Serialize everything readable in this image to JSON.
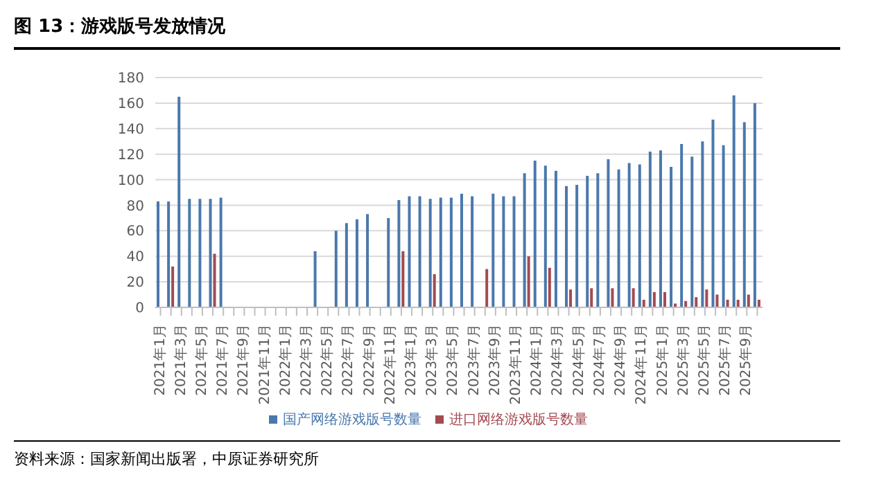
{
  "chart_data": {
    "type": "bar",
    "title": "图 13：游戏版号发放情况",
    "categories": [
      "2021年1月",
      null,
      "2021年3月",
      null,
      "2021年5月",
      null,
      "2021年7月",
      null,
      "2021年9月",
      null,
      "2021年11月",
      null,
      "2022年1月",
      null,
      "2022年3月",
      null,
      "2022年5月",
      null,
      "2022年7月",
      null,
      "2022年9月",
      null,
      "2022年11月",
      null,
      "2023年1月",
      null,
      "2023年3月",
      null,
      "2023年5月",
      null,
      "2023年7月",
      null,
      "2023年9月",
      null,
      "2023年11月",
      null,
      "2024年1月",
      null,
      "2024年3月",
      null,
      "2024年5月",
      null,
      "2024年7月",
      null,
      "2024年9月",
      null,
      "2024年11月",
      null,
      "2025年1月",
      null,
      "2025年3月",
      null,
      "2025年5月",
      null,
      "2025年7月",
      null,
      "2025年9月",
      null
    ],
    "series": [
      {
        "name": "国产网络游戏版号数量",
        "color": "#4a78ac",
        "values": [
          83,
          83,
          165,
          85,
          85,
          85,
          86,
          null,
          null,
          null,
          null,
          null,
          null,
          null,
          null,
          44,
          null,
          60,
          66,
          69,
          73,
          null,
          70,
          84,
          87,
          87,
          85,
          86,
          86,
          89,
          87,
          null,
          89,
          87,
          87,
          105,
          115,
          111,
          107,
          95,
          96,
          103,
          105,
          116,
          108,
          113,
          112,
          122,
          123,
          110,
          128,
          118,
          130,
          147,
          127,
          166,
          145,
          160
        ]
      },
      {
        "name": "进口网络游戏版号数量",
        "color": "#a34a52",
        "values": [
          null,
          32,
          null,
          null,
          null,
          42,
          null,
          null,
          null,
          null,
          null,
          null,
          null,
          null,
          null,
          null,
          null,
          null,
          null,
          null,
          null,
          null,
          null,
          44,
          null,
          null,
          26,
          null,
          null,
          null,
          null,
          30,
          null,
          null,
          null,
          40,
          null,
          31,
          null,
          14,
          null,
          15,
          null,
          15,
          null,
          15,
          6,
          12,
          12,
          3,
          5,
          8,
          14,
          10,
          6,
          6,
          10,
          6
        ]
      }
    ],
    "ylim": [
      0,
      180
    ],
    "yticks": [
      0,
      20,
      40,
      60,
      80,
      100,
      120,
      140,
      160,
      180
    ],
    "grid": "y",
    "legend": "bottom",
    "annotations": [
      "资料来源：国家新闻出版署，中原证券研究所"
    ]
  }
}
